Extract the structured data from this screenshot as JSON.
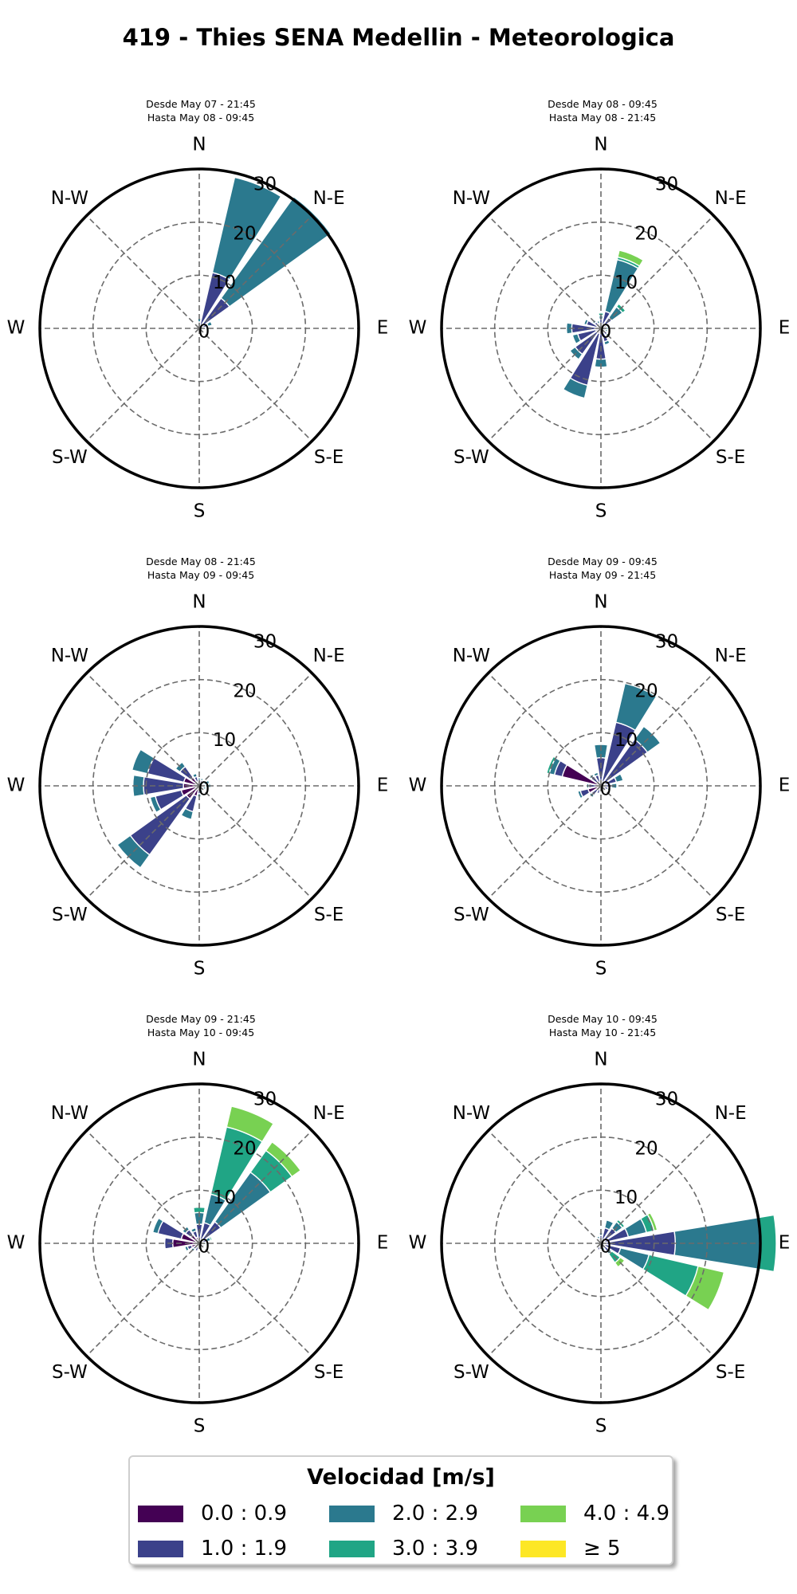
{
  "title": "419 - Thies SENA Medellin - Meteorologica",
  "directions": [
    "N",
    "N-E",
    "E",
    "S-E",
    "S",
    "S-W",
    "W",
    "N-W"
  ],
  "radial_ticks": [
    "0",
    "10",
    "20",
    "30"
  ],
  "legend": {
    "title": "Velocidad [m/s]",
    "items": [
      {
        "label": "0.0 : 0.9",
        "color": "#440154"
      },
      {
        "label": "1.0 : 1.9",
        "color": "#3b418a"
      },
      {
        "label": "2.0 : 2.9",
        "color": "#2b798e"
      },
      {
        "label": "3.0 : 3.9",
        "color": "#20a585"
      },
      {
        "label": "4.0 : 4.9",
        "color": "#78d152"
      },
      {
        "label": "≥ 5",
        "color": "#fde725"
      }
    ]
  },
  "chart_data": [
    {
      "type": "windrose",
      "subtitle_line1": "Desde May 07 - 21:45",
      "subtitle_line2": "Hasta May 08 - 09:45",
      "rlim": [
        0,
        30
      ],
      "sectors": [
        {
          "dir_deg": 22.5,
          "segments": [
            0.6,
            10.2,
            18.4,
            0,
            0,
            0
          ]
        },
        {
          "dir_deg": 45,
          "segments": [
            0.5,
            6.5,
            23.5,
            0,
            0,
            0
          ]
        },
        {
          "dir_deg": 67.5,
          "segments": [
            0.4,
            1.3,
            0.8,
            0,
            0,
            0
          ]
        },
        {
          "dir_deg": 0,
          "segments": [
            0.4,
            0.8,
            0.7,
            0,
            0,
            0
          ]
        },
        {
          "dir_deg": 337.5,
          "segments": [
            0.4,
            0.4,
            0,
            0,
            0,
            0
          ]
        },
        {
          "dir_deg": 315,
          "segments": [
            0.3,
            0,
            0,
            0,
            0,
            0
          ]
        },
        {
          "dir_deg": 90,
          "segments": [
            0.3,
            0.3,
            0,
            0,
            0,
            0
          ]
        },
        {
          "dir_deg": 202.5,
          "segments": [
            0.3,
            0,
            0,
            0,
            0,
            0
          ]
        },
        {
          "dir_deg": 247.5,
          "segments": [
            0.3,
            0,
            0,
            0,
            0,
            0
          ]
        }
      ]
    },
    {
      "type": "windrose",
      "subtitle_line1": "Desde May 08 - 09:45",
      "subtitle_line2": "Hasta May 08 - 21:45",
      "rlim": [
        0,
        30
      ],
      "sectors": [
        {
          "dir_deg": 22.5,
          "segments": [
            0.8,
            2.5,
            10,
            0.5,
            1.3,
            0
          ]
        },
        {
          "dir_deg": 45,
          "segments": [
            0.5,
            2,
            2.5,
            0.7,
            0,
            0
          ]
        },
        {
          "dir_deg": 67.5,
          "segments": [
            0.3,
            0.8,
            0.5,
            0,
            0,
            0
          ]
        },
        {
          "dir_deg": 0,
          "segments": [
            0.5,
            1.2,
            0.7,
            0.5,
            0,
            0
          ]
        },
        {
          "dir_deg": 337.5,
          "segments": [
            0.5,
            0.5,
            0.5,
            0,
            0,
            0
          ]
        },
        {
          "dir_deg": 315,
          "segments": [
            0.5,
            1,
            0.5,
            0,
            0,
            0
          ]
        },
        {
          "dir_deg": 292.5,
          "segments": [
            0.8,
            2,
            0.5,
            0,
            0,
            0
          ]
        },
        {
          "dir_deg": 270,
          "segments": [
            1,
            4.5,
            1,
            0,
            0,
            0
          ]
        },
        {
          "dir_deg": 247.5,
          "segments": [
            1,
            3.5,
            1,
            0,
            0,
            0
          ]
        },
        {
          "dir_deg": 225,
          "segments": [
            1,
            5,
            1.2,
            0,
            0,
            0
          ]
        },
        {
          "dir_deg": 202.5,
          "segments": [
            1,
            10,
            2.5,
            0,
            0,
            0
          ]
        },
        {
          "dir_deg": 180,
          "segments": [
            0.8,
            5,
            1.5,
            0,
            0,
            0
          ]
        },
        {
          "dir_deg": 157.5,
          "segments": [
            0.6,
            2,
            0.6,
            0,
            0,
            0
          ]
        },
        {
          "dir_deg": 135,
          "segments": [
            0.5,
            1,
            0.4,
            0,
            0,
            0
          ]
        },
        {
          "dir_deg": 112.5,
          "segments": [
            0.4,
            0.5,
            0.4,
            0,
            0,
            0
          ]
        },
        {
          "dir_deg": 90,
          "segments": [
            0.4,
            0.6,
            0.4,
            0,
            0,
            0
          ]
        }
      ]
    },
    {
      "type": "windrose",
      "subtitle_line1": "Desde May 08 - 21:45",
      "subtitle_line2": "Hasta May 09 - 09:45",
      "rlim": [
        0,
        30
      ],
      "sectors": [
        {
          "dir_deg": 0,
          "segments": [
            0.5,
            0.5,
            0.5,
            0,
            0,
            0
          ]
        },
        {
          "dir_deg": 22.5,
          "segments": [
            0.5,
            0.6,
            0.4,
            0,
            0,
            0
          ]
        },
        {
          "dir_deg": 45,
          "segments": [
            0.4,
            0.5,
            0.4,
            0,
            0,
            0
          ]
        },
        {
          "dir_deg": 67.5,
          "segments": [
            0.4,
            0.6,
            1,
            0,
            0,
            0
          ]
        },
        {
          "dir_deg": 90,
          "segments": [
            0.4,
            0.8,
            1,
            0,
            0,
            0
          ]
        },
        {
          "dir_deg": 112.5,
          "segments": [
            0.3,
            0.5,
            0.5,
            0,
            0,
            0
          ]
        },
        {
          "dir_deg": 157.5,
          "segments": [
            0.3,
            0.6,
            0.4,
            0,
            0,
            0
          ]
        },
        {
          "dir_deg": 180,
          "segments": [
            0.5,
            1,
            0.6,
            0,
            0,
            0
          ]
        },
        {
          "dir_deg": 202.5,
          "segments": [
            2,
            3,
            1.5,
            0,
            0,
            0
          ]
        },
        {
          "dir_deg": 225,
          "segments": [
            3,
            13,
            3,
            0,
            0,
            0
          ]
        },
        {
          "dir_deg": 247.5,
          "segments": [
            3.5,
            5,
            1,
            0,
            0,
            0
          ]
        },
        {
          "dir_deg": 270,
          "segments": [
            3,
            7.5,
            2,
            0,
            0,
            0
          ]
        },
        {
          "dir_deg": 292.5,
          "segments": [
            3,
            7,
            3,
            0,
            0,
            0
          ]
        },
        {
          "dir_deg": 315,
          "segments": [
            2,
            2.5,
            1,
            0,
            0,
            0
          ]
        },
        {
          "dir_deg": 337.5,
          "segments": [
            0.8,
            1,
            0.6,
            0,
            0,
            0
          ]
        }
      ]
    },
    {
      "type": "windrose",
      "subtitle_line1": "Desde May 09 - 09:45",
      "subtitle_line2": "Hasta May 09 - 21:45",
      "rlim": [
        0,
        30
      ],
      "sectors": [
        {
          "dir_deg": 0,
          "segments": [
            0.8,
            4.5,
            2.5,
            0,
            0,
            0
          ]
        },
        {
          "dir_deg": 22.5,
          "segments": [
            0.8,
            11.5,
            7.5,
            0,
            0,
            0
          ]
        },
        {
          "dir_deg": 45,
          "segments": [
            0.8,
            10,
            3,
            0,
            0,
            0
          ]
        },
        {
          "dir_deg": 67.5,
          "segments": [
            0.5,
            2.5,
            1.3,
            0,
            0,
            0
          ]
        },
        {
          "dir_deg": 90,
          "segments": [
            0.5,
            1.5,
            1,
            0,
            0,
            0
          ]
        },
        {
          "dir_deg": 112.5,
          "segments": [
            0.4,
            1,
            0.5,
            0,
            0,
            0
          ]
        },
        {
          "dir_deg": 135,
          "segments": [
            0.3,
            0.5,
            0,
            0,
            0,
            0
          ]
        },
        {
          "dir_deg": 180,
          "segments": [
            0.3,
            0.5,
            0,
            0,
            0,
            0
          ]
        },
        {
          "dir_deg": 202.5,
          "segments": [
            0.5,
            1,
            0,
            0,
            0,
            0
          ]
        },
        {
          "dir_deg": 225,
          "segments": [
            1,
            1.2,
            0.5,
            0,
            0,
            0
          ]
        },
        {
          "dir_deg": 247.5,
          "segments": [
            2.5,
            1.5,
            0.5,
            0,
            0,
            0
          ]
        },
        {
          "dir_deg": 270,
          "segments": [
            0.8,
            1.5,
            0.4,
            0,
            0,
            0
          ]
        },
        {
          "dir_deg": 292.5,
          "segments": [
            7.5,
            1.5,
            1,
            0.5,
            0,
            0
          ]
        },
        {
          "dir_deg": 315,
          "segments": [
            0.8,
            1.5,
            0.4,
            0,
            0,
            0
          ]
        },
        {
          "dir_deg": 337.5,
          "segments": [
            0.6,
            1.5,
            0.5,
            0,
            0,
            0
          ]
        }
      ]
    },
    {
      "type": "windrose",
      "subtitle_line1": "Desde May 09 - 21:45",
      "subtitle_line2": "Hasta May 10 - 09:45",
      "rlim": [
        0,
        30
      ],
      "sectors": [
        {
          "dir_deg": 0,
          "segments": [
            0.8,
            2.8,
            2.2,
            1,
            0,
            0
          ]
        },
        {
          "dir_deg": 22.5,
          "segments": [
            0.8,
            3.2,
            5.5,
            13,
            4,
            0
          ]
        },
        {
          "dir_deg": 45,
          "segments": [
            0.8,
            4.2,
            11.5,
            5,
            2,
            0
          ]
        },
        {
          "dir_deg": 67.5,
          "segments": [
            0.5,
            1,
            0.7,
            0.3,
            0,
            0
          ]
        },
        {
          "dir_deg": 90,
          "segments": [
            0.4,
            0.6,
            0.3,
            0,
            0,
            0
          ]
        },
        {
          "dir_deg": 112.5,
          "segments": [
            0.3,
            0.5,
            0.3,
            0,
            0,
            0
          ]
        },
        {
          "dir_deg": 180,
          "segments": [
            0.3,
            0.4,
            0,
            0,
            0,
            0
          ]
        },
        {
          "dir_deg": 202.5,
          "segments": [
            0.5,
            1,
            0,
            0,
            0,
            0
          ]
        },
        {
          "dir_deg": 225,
          "segments": [
            0.8,
            0.6,
            0.5,
            0,
            0,
            0
          ]
        },
        {
          "dir_deg": 247.5,
          "segments": [
            1.5,
            0.8,
            0.5,
            0,
            0,
            0
          ]
        },
        {
          "dir_deg": 270,
          "segments": [
            5,
            1.5,
            0,
            0,
            0,
            0
          ]
        },
        {
          "dir_deg": 292.5,
          "segments": [
            3.5,
            4.5,
            1,
            0,
            0,
            0
          ]
        },
        {
          "dir_deg": 315,
          "segments": [
            2,
            1.2,
            0.7,
            0,
            0,
            0
          ]
        },
        {
          "dir_deg": 337.5,
          "segments": [
            1.2,
            1.2,
            0.6,
            0,
            0,
            0
          ]
        }
      ]
    },
    {
      "type": "windrose",
      "subtitle_line1": "Desde May 10 - 09:45",
      "subtitle_line2": "Hasta May 10 - 21:45",
      "rlim": [
        0,
        30
      ],
      "sectors": [
        {
          "dir_deg": 0,
          "segments": [
            0.5,
            1,
            0.5,
            0,
            0,
            0
          ]
        },
        {
          "dir_deg": 22.5,
          "segments": [
            0.5,
            2.5,
            1.5,
            0,
            0,
            0
          ]
        },
        {
          "dir_deg": 45,
          "segments": [
            0.5,
            3,
            1.5,
            0.5,
            0,
            0
          ]
        },
        {
          "dir_deg": 67.5,
          "segments": [
            0.8,
            4.5,
            3.5,
            1.5,
            0.6,
            0
          ]
        },
        {
          "dir_deg": 90,
          "segments": [
            1,
            13,
            16,
            3,
            0,
            0
          ]
        },
        {
          "dir_deg": 112.5,
          "segments": [
            0.8,
            3,
            5.5,
            9.5,
            5,
            0
          ]
        },
        {
          "dir_deg": 135,
          "segments": [
            0.5,
            1.5,
            0.5,
            2,
            1,
            0
          ]
        },
        {
          "dir_deg": 157.5,
          "segments": [
            0.4,
            0.5,
            0.5,
            0,
            0,
            0
          ]
        },
        {
          "dir_deg": 202.5,
          "segments": [
            0.5,
            0.8,
            0,
            0,
            0,
            0
          ]
        },
        {
          "dir_deg": 225,
          "segments": [
            0.5,
            0.5,
            0,
            0,
            0,
            0
          ]
        },
        {
          "dir_deg": 247.5,
          "segments": [
            0.4,
            0.4,
            0,
            0,
            0,
            0
          ]
        },
        {
          "dir_deg": 270,
          "segments": [
            0.5,
            0.4,
            0,
            0,
            0,
            0
          ]
        },
        {
          "dir_deg": 292.5,
          "segments": [
            0.4,
            0.5,
            0,
            0,
            0,
            0
          ]
        },
        {
          "dir_deg": 315,
          "segments": [
            0.4,
            0.5,
            0,
            0,
            0,
            0
          ]
        },
        {
          "dir_deg": 337.5,
          "segments": [
            0.4,
            0.6,
            0.4,
            0,
            0,
            0
          ]
        }
      ]
    }
  ]
}
